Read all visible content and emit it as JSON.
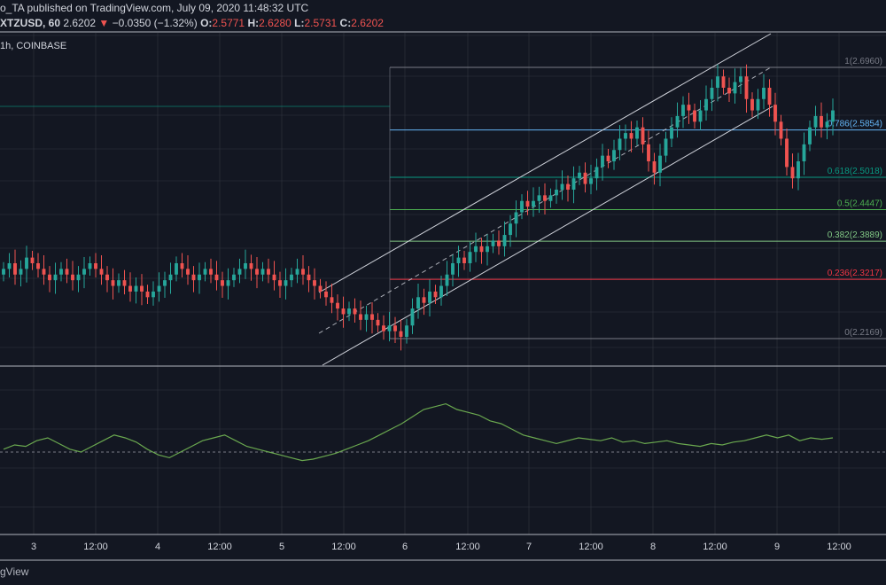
{
  "header": {
    "published_line": "o_TA published on TradingView.com, July 09, 2020 11:48:32 UTC",
    "symbol": "XTZUSD, 60",
    "last": "2.6202",
    "change": "−0.0350 (−1.32%)",
    "o_label": "O:",
    "o_value": "2.5771",
    "h_label": "H:",
    "h_value": "2.6280",
    "l_label": "L:",
    "l_value": "2.5731",
    "c_label": "C:",
    "c_value": "2.6202",
    "interval_line": "1h, COINBASE"
  },
  "footer": {
    "brand": "gView"
  },
  "colors": {
    "background": "#131722",
    "up": "#26a69a",
    "down": "#ef5350",
    "grid": "#363a45",
    "fib_0": "#787b86",
    "fib_236": "#f23645",
    "fib_382": "#81c784",
    "fib_5": "#4caf50",
    "fib_618": "#089981",
    "fib_786": "#64b5f6",
    "fib_1": "#787b86",
    "channel": "#d1d4dc",
    "oscillator": "#6aa84f"
  },
  "chart_data": {
    "type": "candlestick",
    "symbol": "XTZUSD",
    "exchange": "COINBASE",
    "interval": "1h",
    "x_ticks": [
      "3",
      "12:00",
      "4",
      "12:00",
      "5",
      "12:00",
      "6",
      "12:00",
      "7",
      "12:00",
      "8",
      "12:00",
      "9",
      "12:00"
    ],
    "ylim": [
      2.1,
      2.78
    ],
    "candle_closes": [
      2.34,
      2.35,
      2.33,
      2.34,
      2.36,
      2.35,
      2.34,
      2.33,
      2.32,
      2.33,
      2.34,
      2.33,
      2.32,
      2.33,
      2.34,
      2.35,
      2.34,
      2.33,
      2.32,
      2.31,
      2.32,
      2.31,
      2.3,
      2.31,
      2.3,
      2.29,
      2.3,
      2.31,
      2.32,
      2.33,
      2.35,
      2.34,
      2.33,
      2.32,
      2.33,
      2.34,
      2.33,
      2.32,
      2.31,
      2.32,
      2.33,
      2.34,
      2.35,
      2.34,
      2.33,
      2.34,
      2.33,
      2.32,
      2.31,
      2.32,
      2.33,
      2.34,
      2.33,
      2.32,
      2.31,
      2.3,
      2.29,
      2.28,
      2.27,
      2.26,
      2.27,
      2.26,
      2.25,
      2.26,
      2.25,
      2.24,
      2.23,
      2.24,
      2.23,
      2.22,
      2.24,
      2.27,
      2.29,
      2.28,
      2.3,
      2.29,
      2.31,
      2.33,
      2.35,
      2.36,
      2.35,
      2.37,
      2.38,
      2.37,
      2.38,
      2.39,
      2.38,
      2.4,
      2.42,
      2.44,
      2.46,
      2.45,
      2.46,
      2.47,
      2.46,
      2.47,
      2.48,
      2.49,
      2.48,
      2.5,
      2.51,
      2.49,
      2.5,
      2.52,
      2.54,
      2.53,
      2.55,
      2.57,
      2.58,
      2.57,
      2.59,
      2.56,
      2.53,
      2.51,
      2.54,
      2.57,
      2.59,
      2.61,
      2.63,
      2.62,
      2.6,
      2.62,
      2.64,
      2.66,
      2.68,
      2.66,
      2.65,
      2.67,
      2.68,
      2.64,
      2.62,
      2.64,
      2.66,
      2.63,
      2.6,
      2.57,
      2.52,
      2.5,
      2.53,
      2.56,
      2.59,
      2.61,
      2.59,
      2.6,
      2.62
    ],
    "fib_levels": [
      {
        "ratio": "0",
        "price": 2.2169,
        "label": "0(2.2169)"
      },
      {
        "ratio": "0.236",
        "price": 2.3217,
        "label": "0.236(2.3217)"
      },
      {
        "ratio": "0.382",
        "price": 2.3889,
        "label": "0.382(2.3889)"
      },
      {
        "ratio": "0.5",
        "price": 2.4447,
        "label": "0.5(2.4447)"
      },
      {
        "ratio": "0.618",
        "price": 2.5018,
        "label": "0.618(2.5018)"
      },
      {
        "ratio": "0.786",
        "price": 2.5854,
        "label": "0.786(2.5854)"
      },
      {
        "ratio": "1",
        "price": 2.696,
        "label": "1(2.6960)"
      }
    ],
    "oscillator": {
      "ylim": [
        0,
        100
      ],
      "midline": 50,
      "values": [
        52,
        55,
        54,
        58,
        60,
        56,
        52,
        50,
        54,
        58,
        62,
        60,
        57,
        52,
        48,
        46,
        50,
        54,
        58,
        60,
        62,
        58,
        54,
        52,
        50,
        48,
        46,
        44,
        45,
        47,
        49,
        52,
        55,
        58,
        62,
        66,
        70,
        75,
        80,
        82,
        84,
        80,
        78,
        76,
        72,
        70,
        66,
        62,
        60,
        58,
        56,
        58,
        60,
        59,
        58,
        60,
        57,
        58,
        56,
        57,
        58,
        56,
        55,
        54,
        56,
        55,
        57,
        58,
        60,
        62,
        60,
        62,
        58,
        60,
        59,
        60
      ]
    }
  }
}
